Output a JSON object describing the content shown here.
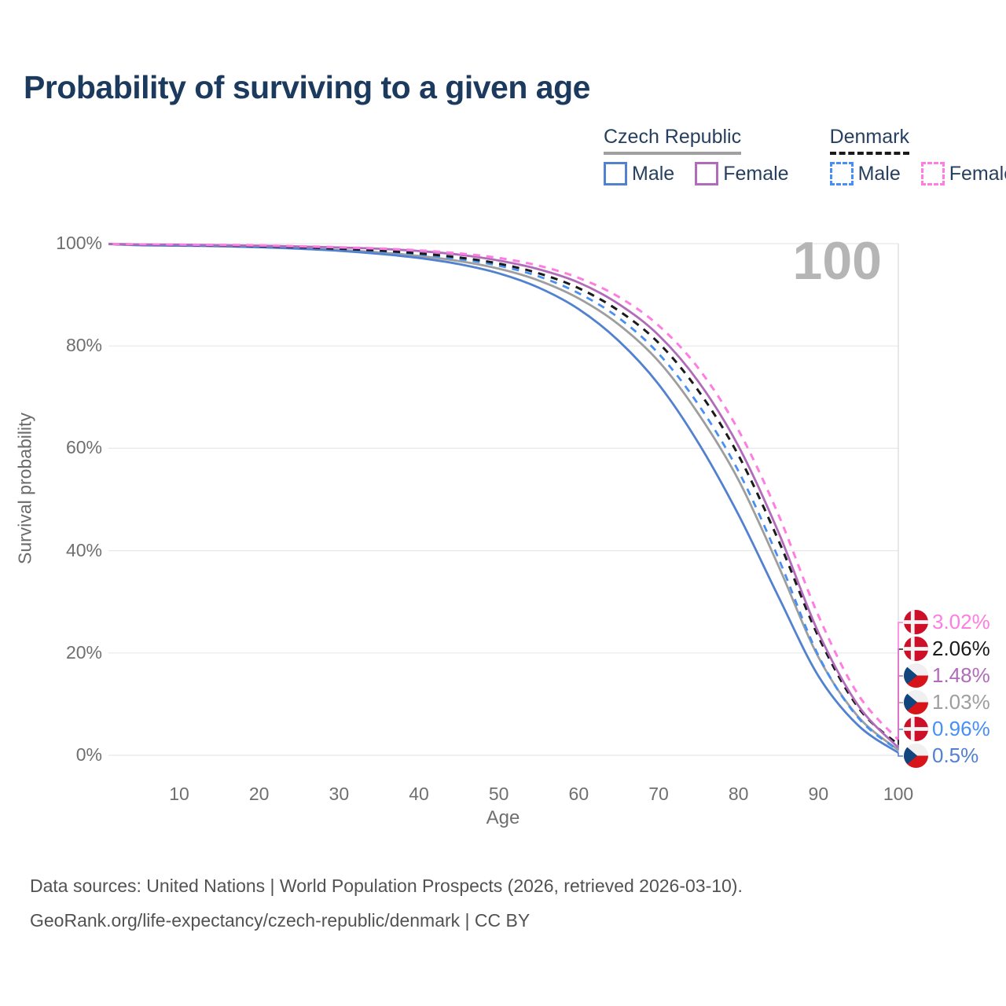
{
  "title": "Probability of surviving to a given age",
  "legend": {
    "groups": [
      {
        "name": "Czech Republic",
        "line": {
          "color": "#a0a0a0",
          "dash": "solid"
        },
        "items": [
          {
            "label": "Male",
            "color": "#5181cf",
            "dash": "solid"
          },
          {
            "label": "Female",
            "color": "#b26bba",
            "dash": "solid"
          }
        ]
      },
      {
        "name": "Denmark",
        "line": {
          "color": "#1a1a1a",
          "dash": "dashed"
        },
        "items": [
          {
            "label": "Male",
            "color": "#478ff2",
            "dash": "dashed"
          },
          {
            "label": "Female",
            "color": "#ff7de1",
            "dash": "dashed"
          }
        ]
      }
    ]
  },
  "chart_data": {
    "type": "line",
    "title": "Probability of surviving to a given age",
    "xlabel": "Age",
    "ylabel": "Survival probability",
    "xlim": [
      0,
      100
    ],
    "ylim": [
      0,
      100
    ],
    "grid": "horizontal",
    "highlight_age_label": "100",
    "x_ticks": [
      10,
      20,
      30,
      40,
      50,
      60,
      70,
      80,
      90,
      100
    ],
    "y_ticks": [
      {
        "value": 100,
        "label": "100%"
      },
      {
        "value": 80,
        "label": "80%"
      },
      {
        "value": 60,
        "label": "60%"
      },
      {
        "value": 40,
        "label": "40%"
      },
      {
        "value": 20,
        "label": "20%"
      },
      {
        "value": 0,
        "label": "0%"
      }
    ],
    "x": [
      0,
      5,
      10,
      15,
      20,
      25,
      30,
      35,
      40,
      45,
      50,
      55,
      60,
      65,
      70,
      75,
      80,
      85,
      90,
      95,
      100
    ],
    "series": [
      {
        "id": "czech-republic-total",
        "name": "Czech Republic",
        "color": "#9e9e9e",
        "dash": "solid",
        "flag": "czech-republic",
        "end_label": "1.03%",
        "values": [
          100,
          99.75,
          99.65,
          99.55,
          99.35,
          99.1,
          98.75,
          98.3,
          97.6,
          96.6,
          95.1,
          92.8,
          89.3,
          84.2,
          77.0,
          66.7,
          53.8,
          37.0,
          19.2,
          7.5,
          1.03
        ]
      },
      {
        "id": "czech-republic-male",
        "name": "Czech Republic Male",
        "color": "#5181cf",
        "dash": "solid",
        "flag": "czech-republic",
        "end_label": "0.5%",
        "values": [
          100,
          99.7,
          99.6,
          99.5,
          99.3,
          99.0,
          98.6,
          98.0,
          97.2,
          96.0,
          94.2,
          91.4,
          87.2,
          81.0,
          72.5,
          61.0,
          47.0,
          31.0,
          15.5,
          5.8,
          0.5
        ]
      },
      {
        "id": "denmark-male",
        "name": "Denmark Male",
        "color": "#478ff2",
        "dash": "dashed",
        "flag": "denmark",
        "end_label": "0.96%",
        "values": [
          100,
          99.8,
          99.7,
          99.6,
          99.45,
          99.2,
          98.9,
          98.5,
          97.9,
          97.0,
          95.7,
          93.6,
          90.3,
          85.5,
          78.5,
          68.5,
          55.5,
          38.5,
          19.5,
          7.3,
          0.96
        ]
      },
      {
        "id": "denmark-total",
        "name": "Denmark",
        "color": "#1a1a1a",
        "dash": "dashed",
        "flag": "denmark",
        "end_label": "2.06%",
        "values": [
          100,
          99.8,
          99.75,
          99.65,
          99.5,
          99.3,
          99.0,
          98.65,
          98.1,
          97.3,
          96.1,
          94.2,
          91.3,
          86.9,
          80.6,
          71.2,
          58.6,
          42.0,
          23.2,
          9.3,
          2.06
        ]
      },
      {
        "id": "czech-republic-female",
        "name": "Czech Republic Female",
        "color": "#b26bba",
        "dash": "solid",
        "flag": "czech-republic",
        "end_label": "1.48%",
        "values": [
          100,
          99.85,
          99.8,
          99.7,
          99.6,
          99.45,
          99.25,
          99.0,
          98.55,
          97.85,
          96.7,
          95.0,
          92.4,
          88.2,
          82.1,
          73.0,
          60.4,
          43.6,
          24.0,
          9.7,
          1.48
        ]
      },
      {
        "id": "denmark-female",
        "name": "Denmark Female",
        "color": "#ff7de1",
        "dash": "dashed",
        "flag": "denmark",
        "end_label": "3.02%",
        "values": [
          100,
          99.85,
          99.8,
          99.75,
          99.65,
          99.5,
          99.3,
          99.05,
          98.7,
          98.1,
          97.2,
          95.7,
          93.3,
          89.6,
          84.0,
          75.6,
          63.5,
          47.0,
          27.3,
          11.8,
          3.02
        ]
      }
    ]
  },
  "footer": {
    "line1": "Data sources: United Nations | World Population Prospects (2026, retrieved 2026-03-10).",
    "line2": "GeoRank.org/life-expectancy/czech-republic/denmark | CC BY"
  }
}
